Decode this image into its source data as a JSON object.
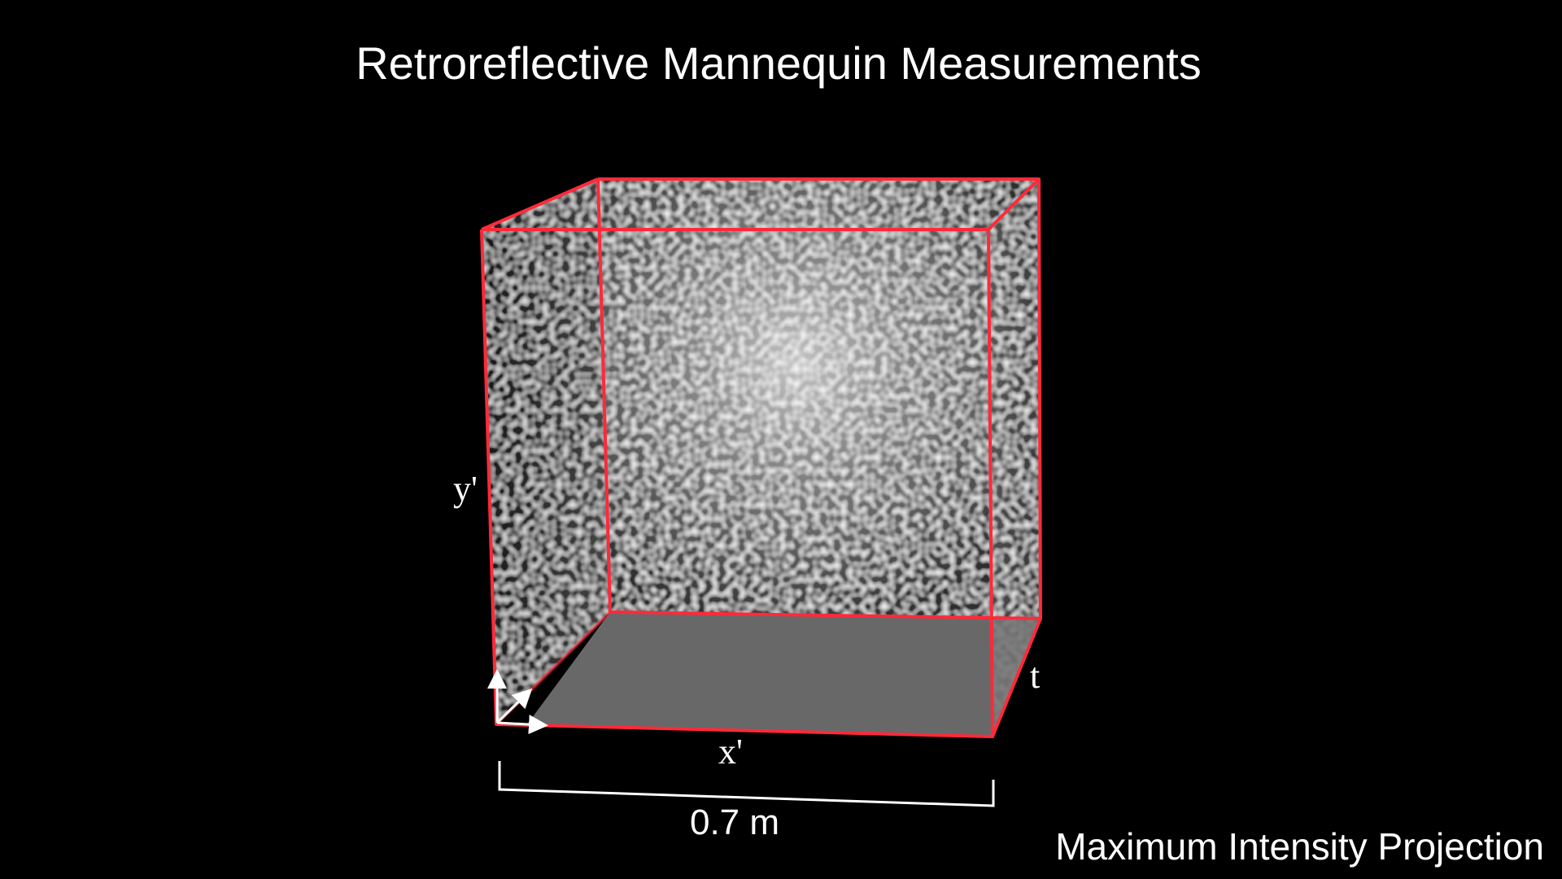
{
  "title": "Retroreflective Mannequin Measurements",
  "caption": "Maximum Intensity Projection",
  "axes": {
    "x_label": "x'",
    "y_label": "y'",
    "t_label": "t"
  },
  "scale_bar": {
    "label": "0.7 m"
  },
  "colors": {
    "background": "#000000",
    "box_edges": "#ff2a3a",
    "text": "#ffffff",
    "floor": "#7a7a7a"
  }
}
